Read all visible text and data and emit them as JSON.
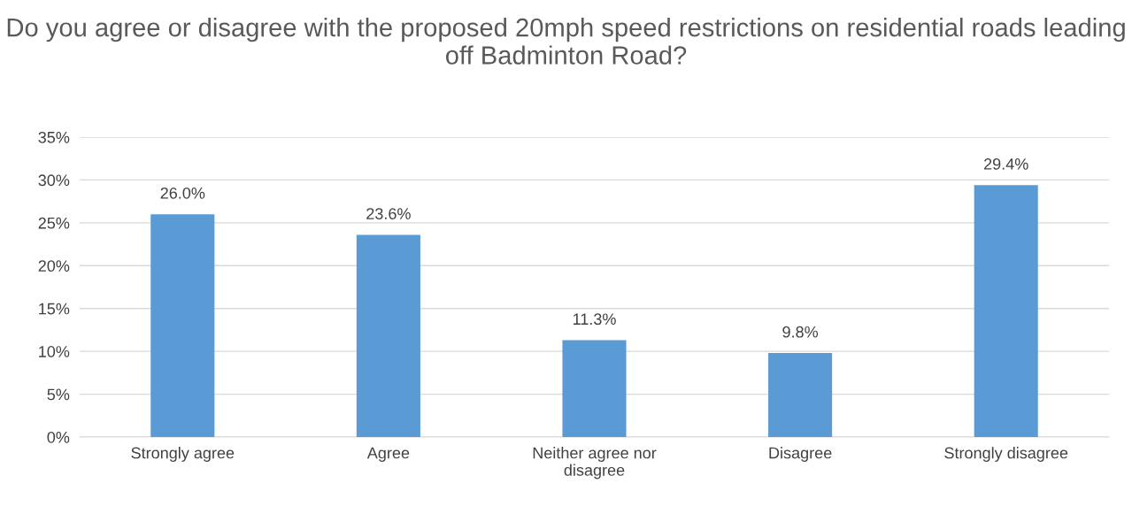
{
  "chart_data": {
    "type": "bar",
    "title": "Do you agree or disagree with the proposed 20mph speed restrictions on residential roads leading off Badminton Road?",
    "categories": [
      "Strongly agree",
      "Agree",
      "Neither agree nor\ndisagree",
      "Disagree",
      "Strongly disagree"
    ],
    "values": [
      26.0,
      23.6,
      11.3,
      9.8,
      29.4
    ],
    "value_labels": [
      "26.0%",
      "23.6%",
      "11.3%",
      "9.8%",
      "29.4%"
    ],
    "color": "#5b9bd5",
    "ylim": [
      0,
      35
    ],
    "yticks": [
      {
        "value": 0,
        "label": "0%"
      },
      {
        "value": 5,
        "label": "5%"
      },
      {
        "value": 10,
        "label": "10%"
      },
      {
        "value": 15,
        "label": "15%"
      },
      {
        "value": 20,
        "label": "20%"
      },
      {
        "value": 25,
        "label": "25%"
      },
      {
        "value": 30,
        "label": "30%"
      },
      {
        "value": 35,
        "label": "35%"
      }
    ],
    "grid": "y"
  }
}
